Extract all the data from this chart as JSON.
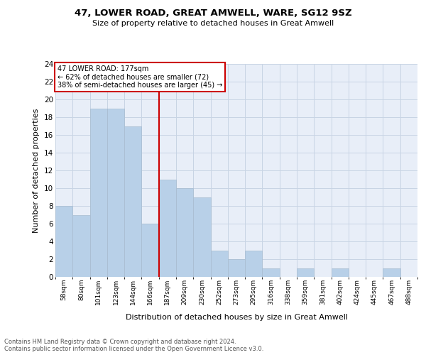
{
  "title": "47, LOWER ROAD, GREAT AMWELL, WARE, SG12 9SZ",
  "subtitle": "Size of property relative to detached houses in Great Amwell",
  "xlabel": "Distribution of detached houses by size in Great Amwell",
  "ylabel": "Number of detached properties",
  "categories": [
    "58sqm",
    "80sqm",
    "101sqm",
    "123sqm",
    "144sqm",
    "166sqm",
    "187sqm",
    "209sqm",
    "230sqm",
    "252sqm",
    "273sqm",
    "295sqm",
    "316sqm",
    "338sqm",
    "359sqm",
    "381sqm",
    "402sqm",
    "424sqm",
    "445sqm",
    "467sqm",
    "488sqm"
  ],
  "values": [
    8,
    7,
    19,
    19,
    17,
    6,
    11,
    10,
    9,
    3,
    2,
    3,
    1,
    0,
    1,
    0,
    1,
    0,
    0,
    1,
    0
  ],
  "bar_color": "#b8d0e8",
  "bar_edge_color": "#a8bcd0",
  "vline_x": 5.5,
  "vline_color": "#cc0000",
  "annotation_lines": [
    "47 LOWER ROAD: 177sqm",
    "← 62% of detached houses are smaller (72)",
    "38% of semi-detached houses are larger (45) →"
  ],
  "annotation_box_color": "#cc0000",
  "ylim": [
    0,
    24
  ],
  "yticks": [
    0,
    2,
    4,
    6,
    8,
    10,
    12,
    14,
    16,
    18,
    20,
    22,
    24
  ],
  "grid_color": "#c8d4e4",
  "background_color": "#e8eef8",
  "footnote1": "Contains HM Land Registry data © Crown copyright and database right 2024.",
  "footnote2": "Contains public sector information licensed under the Open Government Licence v3.0."
}
